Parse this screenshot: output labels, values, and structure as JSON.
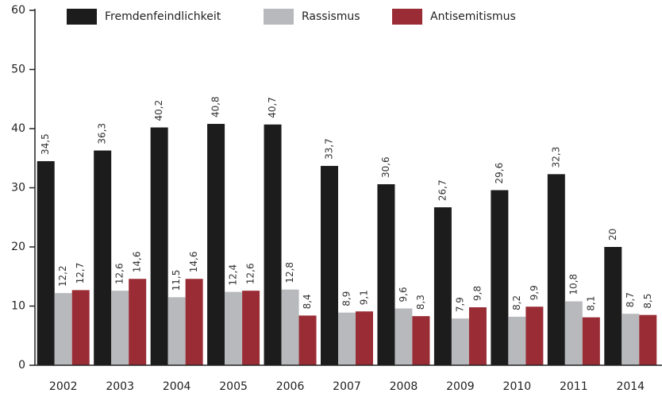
{
  "chart_data": {
    "type": "bar",
    "categories": [
      "2002",
      "2003",
      "2004",
      "2005",
      "2006",
      "2007",
      "2008",
      "2009",
      "2010",
      "2011",
      "2014"
    ],
    "series": [
      {
        "name": "Fremdenfeindlichkeit",
        "color": "#1c1c1c",
        "values": [
          34.5,
          36.3,
          40.2,
          40.8,
          40.7,
          33.7,
          30.6,
          26.7,
          29.6,
          32.3,
          20
        ],
        "value_labels": [
          "34,5",
          "36,3",
          "40,2",
          "40,8",
          "40,7",
          "33,7",
          "30,6",
          "26,7",
          "29,6",
          "32,3",
          "20"
        ]
      },
      {
        "name": "Rassismus",
        "color": "#b7b9bc",
        "values": [
          12.2,
          12.6,
          11.5,
          12.4,
          12.8,
          8.9,
          9.6,
          7.9,
          8.2,
          10.8,
          8.7
        ],
        "value_labels": [
          "12,2",
          "12,6",
          "11,5",
          "12,4",
          "12,8",
          "8,9",
          "9,6",
          "7,9",
          "8,2",
          "10,8",
          "8,7"
        ]
      },
      {
        "name": "Antisemitismus",
        "color": "#9a2c35",
        "values": [
          12.7,
          14.6,
          14.6,
          12.6,
          8.4,
          9.1,
          8.3,
          9.8,
          9.9,
          8.1,
          8.5
        ],
        "value_labels": [
          "12,7",
          "14,6",
          "14,6",
          "12,6",
          "8,4",
          "9,1",
          "8,3",
          "9,8",
          "9,9",
          "8,1",
          "8,5"
        ]
      }
    ],
    "ylim": [
      0,
      60
    ],
    "yticks": [
      0,
      10,
      20,
      30,
      40,
      50,
      60
    ],
    "grid": false
  }
}
